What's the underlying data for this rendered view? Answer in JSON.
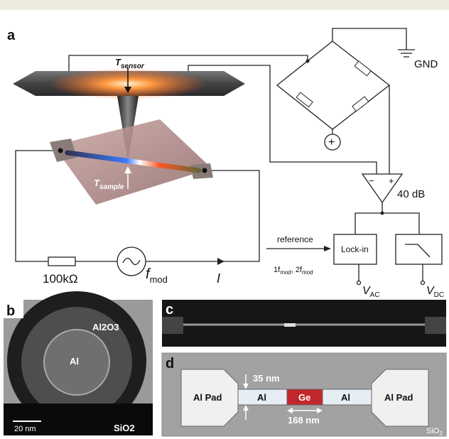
{
  "panel_a": {
    "label": "a",
    "t_sensor": {
      "main": "T",
      "sub": "sensor"
    },
    "t_sample": {
      "main": "T",
      "sub": "sample"
    },
    "gnd": "GND",
    "amp_minus": "−",
    "amp_plus": "+",
    "gain": "40 dB",
    "source_sign": "+",
    "reference": "reference",
    "lockin": "Lock-in",
    "harmonics": {
      "first": "1f",
      "first_sub": "mod",
      "second": ", 2f",
      "second_sub": "mod"
    },
    "v_ac": {
      "main": "V",
      "sub": "AC"
    },
    "v_dc": {
      "main": "V",
      "sub": "DC"
    },
    "resistor": "100kΩ",
    "f_mod": {
      "main": "f",
      "sub": "mod"
    },
    "current": "I"
  },
  "panel_b": {
    "label": "b",
    "shell": "Al2O3",
    "core": "Al",
    "scale": "20 nm",
    "substrate": "SiO2"
  },
  "panel_c": {
    "label": "c"
  },
  "panel_d": {
    "label": "d",
    "left_pad": "Al Pad",
    "left_wire": "Al",
    "gap": "Ge",
    "right_wire": "Al",
    "right_pad": "Al Pad",
    "diameter": "35 nm",
    "length": "168 nm",
    "substrate": {
      "main": "SiO",
      "sub": "2"
    }
  }
}
